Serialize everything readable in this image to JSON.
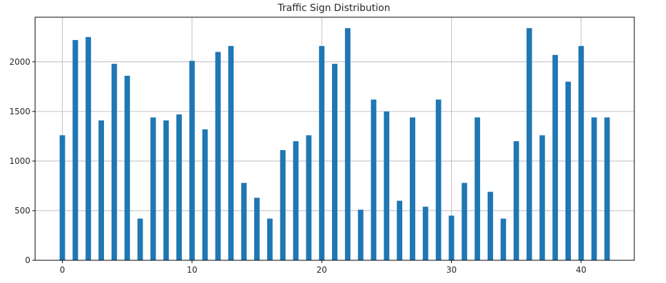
{
  "chart_data": {
    "type": "bar",
    "title": "Traffic Sign Distribution",
    "xlabel": "",
    "ylabel": "",
    "x": [
      0,
      1,
      2,
      3,
      4,
      5,
      6,
      7,
      8,
      9,
      10,
      11,
      12,
      13,
      14,
      15,
      16,
      17,
      18,
      19,
      20,
      21,
      22,
      23,
      24,
      25,
      26,
      27,
      28,
      29,
      30,
      31,
      32,
      33,
      34,
      35,
      36,
      37,
      38,
      39,
      40,
      41,
      42
    ],
    "values": [
      1260,
      2220,
      2250,
      1410,
      1980,
      1860,
      420,
      1440,
      1410,
      1470,
      2010,
      1320,
      2100,
      2160,
      780,
      630,
      420,
      1110,
      1200,
      1260,
      2160,
      1980,
      2340,
      510,
      1620,
      1500,
      600,
      1440,
      540,
      1620,
      450,
      780,
      1440,
      690,
      420,
      1200,
      2340,
      1260,
      2070,
      1800,
      2160,
      1440,
      1440
    ],
    "xticks": [
      0,
      10,
      20,
      30,
      40
    ],
    "yticks": [
      0,
      500,
      1000,
      1500,
      2000
    ],
    "xlim": [
      -2.1,
      44.1
    ],
    "ylim": [
      0,
      2450
    ],
    "grid": true,
    "bar_color": "#1f77b4"
  }
}
